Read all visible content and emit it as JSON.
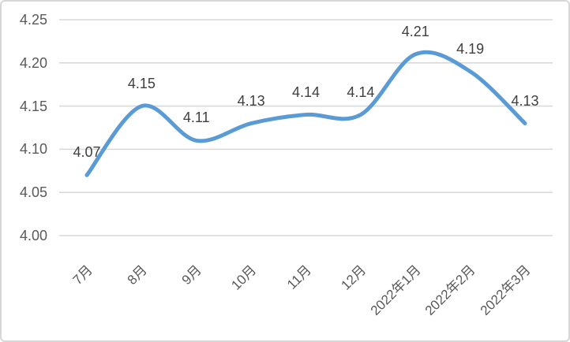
{
  "chart_data": {
    "type": "line",
    "categories": [
      "7月",
      "8月",
      "9月",
      "10月",
      "11月",
      "12月",
      "2022年1月",
      "2022年2月",
      "2022年3月"
    ],
    "values": [
      4.07,
      4.15,
      4.11,
      4.13,
      4.14,
      4.14,
      4.21,
      4.19,
      4.13
    ],
    "data_labels": [
      "4.07",
      "4.15",
      "4.11",
      "4.13",
      "4.14",
      "4.14",
      "4.21",
      "4.19",
      "4.13"
    ],
    "title": "",
    "xlabel": "",
    "ylabel": "",
    "ylim": [
      4.0,
      4.25
    ],
    "y_ticks": [
      "4.25",
      "4.20",
      "4.15",
      "4.10",
      "4.05",
      "4.00"
    ],
    "y_tick_values": [
      4.25,
      4.2,
      4.15,
      4.1,
      4.05,
      4.0
    ],
    "grid": true,
    "smooth": true,
    "legend": "none",
    "colors": {
      "line": "#5b9bd5",
      "gridline": "#d9d9d9",
      "axis_label": "#595959",
      "data_label": "#3f3f3f",
      "frame_border": "#d7d7d7",
      "background": "#ffffff"
    }
  }
}
